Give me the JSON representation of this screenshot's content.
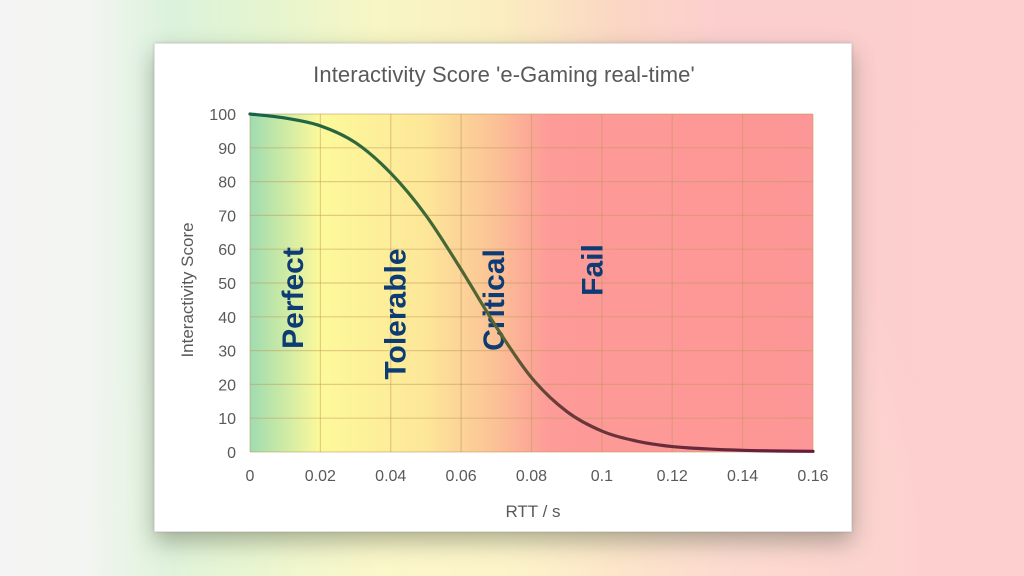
{
  "chart_data": {
    "type": "line",
    "title": "Interactivity Score 'e-Gaming real-time'",
    "xlabel": "RTT / s",
    "ylabel": "Interactivity Score",
    "xlim": [
      0,
      0.16
    ],
    "ylim": [
      0,
      100
    ],
    "x_ticks": [
      "0",
      "0.02",
      "0.04",
      "0.06",
      "0.08",
      "0.1",
      "0.12",
      "0.14",
      "0.16"
    ],
    "y_ticks": [
      "0",
      "10",
      "20",
      "30",
      "40",
      "50",
      "60",
      "70",
      "80",
      "90",
      "100"
    ],
    "grid": true,
    "legend": "none",
    "series": [
      {
        "name": "Interactivity Score",
        "x": [
          0,
          0.01,
          0.02,
          0.03,
          0.04,
          0.05,
          0.06,
          0.07,
          0.08,
          0.09,
          0.1,
          0.11,
          0.12,
          0.13,
          0.14,
          0.15,
          0.16
        ],
        "values": [
          100,
          98.8,
          96.5,
          91.5,
          82.5,
          70,
          54,
          37,
          22,
          12,
          6.2,
          3.2,
          1.6,
          0.9,
          0.5,
          0.3,
          0.2
        ]
      }
    ],
    "zones": [
      {
        "label": "Perfect",
        "x_center": 0.012
      },
      {
        "label": "Tolerable",
        "x_center": 0.041
      },
      {
        "label": "Critical",
        "x_center": 0.069
      },
      {
        "label": "Fail",
        "x_center": 0.097
      }
    ],
    "zone_colors": {
      "perfect": "#9fdcb0",
      "tolerable": "#fdf99a",
      "critical": "#fbb79a",
      "fail": "#fd9797"
    },
    "line_colors": {
      "start": "#1b6b4a",
      "mid": "#5a6a30",
      "end": "#6a1a3a"
    }
  }
}
